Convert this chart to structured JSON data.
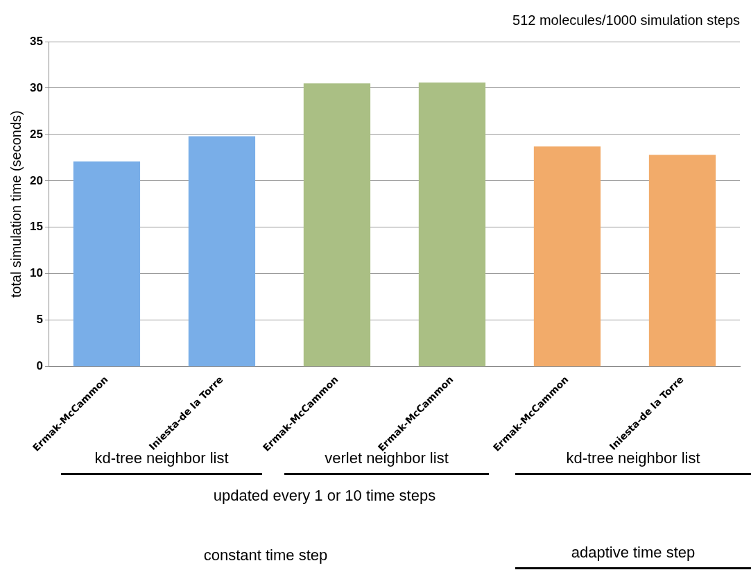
{
  "chart_data": {
    "type": "bar",
    "title": "512 molecules/1000 simulation steps",
    "ylabel": "total simulation time (seconds)",
    "categories": [
      "Ermak-McCammon",
      "Iniesta-de la Torre",
      "Ermak-McCammon",
      "Ermak-McCammon",
      "Ermak-McCammon",
      "Iniesta-de la Torre"
    ],
    "values": [
      22.1,
      24.8,
      30.5,
      30.6,
      23.7,
      22.8
    ],
    "colors": [
      "#79aee8",
      "#79aee8",
      "#aabf84",
      "#aabf84",
      "#f2ab6a",
      "#f2ab6a"
    ],
    "ylim": [
      0,
      35
    ],
    "yticks": [
      0,
      5,
      10,
      15,
      20,
      25,
      30,
      35
    ],
    "grid": "y",
    "legend": false,
    "annotations": [
      "kd-tree neighbor list",
      "verlet neighbor list",
      "kd-tree neighbor list",
      "updated every 1 or 10 time steps",
      "constant time step",
      "adaptive time step"
    ]
  }
}
